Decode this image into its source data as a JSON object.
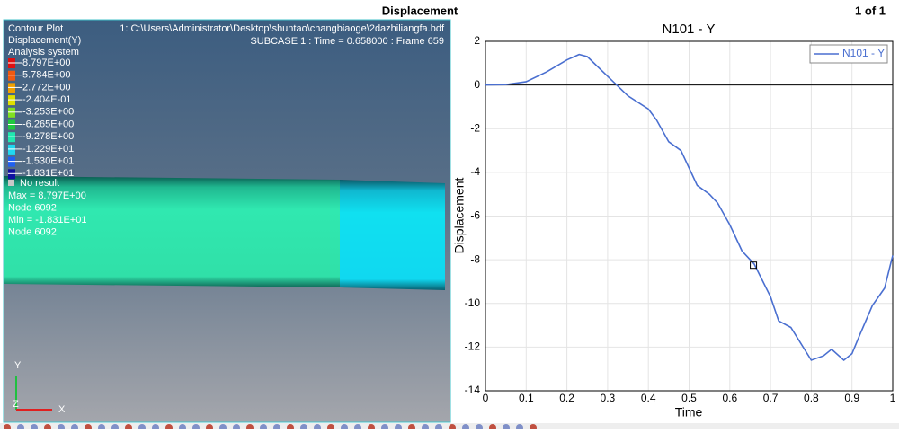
{
  "header": {
    "title": "Displacement",
    "page": "1 of 1"
  },
  "contour": {
    "title": "Contour Plot",
    "result": "Displacement(Y)",
    "system": "Analysis system",
    "file": "1: C:\\Users\\Administrator\\Desktop\\shuntao\\changbiaoge\\2dazhiliangfa.bdf",
    "subcase": "SUBCASE 1 : Time = 0.658000 : Frame 659",
    "levels": [
      "8.797E+00",
      "5.784E+00",
      "2.772E+00",
      "-2.404E-01",
      "-3.253E+00",
      "-6.265E+00",
      "-9.278E+00",
      "-1.229E+01",
      "-1.530E+01",
      "-1.831E+01"
    ],
    "colors": [
      "#e01010",
      "#f05a10",
      "#f0a000",
      "#e0e000",
      "#80e020",
      "#20c840",
      "#20e8b0",
      "#20d8f0",
      "#2060f0",
      "#1010a0"
    ],
    "no_result": "No result",
    "stats": [
      "Max = 8.797E+00",
      "Node 6092",
      "Min = -1.831E+01",
      "Node 6092"
    ],
    "triad": [
      "Y",
      "Z",
      "X"
    ]
  },
  "chart_data": {
    "type": "line",
    "title": "N101 - Y",
    "xlabel": "Time",
    "ylabel": "Displacement",
    "x": [
      0,
      0.05,
      0.1,
      0.15,
      0.2,
      0.23,
      0.25,
      0.3,
      0.35,
      0.4,
      0.42,
      0.45,
      0.48,
      0.5,
      0.52,
      0.55,
      0.57,
      0.6,
      0.63,
      0.66,
      0.7,
      0.72,
      0.75,
      0.78,
      0.8,
      0.83,
      0.85,
      0.88,
      0.9,
      0.92,
      0.95,
      0.98,
      1.0
    ],
    "series": [
      {
        "name": "N101 - Y",
        "color": "#4a6fd0",
        "values": [
          0,
          0.02,
          0.15,
          0.6,
          1.15,
          1.4,
          1.3,
          0.4,
          -0.5,
          -1.1,
          -1.6,
          -2.6,
          -3.0,
          -3.8,
          -4.6,
          -5.0,
          -5.4,
          -6.4,
          -7.6,
          -8.2,
          -9.7,
          -10.8,
          -11.1,
          -12.0,
          -12.6,
          -12.4,
          -12.1,
          -12.6,
          -12.3,
          -11.4,
          -10.1,
          -9.3,
          -7.8
        ]
      }
    ],
    "marker": {
      "x": 0.658,
      "y": -8.25
    },
    "xlim": [
      0,
      1
    ],
    "xticks": [
      0,
      0.1,
      0.2,
      0.3,
      0.4,
      0.5,
      0.6,
      0.7,
      0.8,
      0.9,
      1
    ],
    "ylim": [
      -14,
      2
    ],
    "yticks": [
      -14,
      -12,
      -10,
      -8,
      -6,
      -4,
      -2,
      0,
      2
    ],
    "grid": true,
    "legend": "top-right"
  }
}
